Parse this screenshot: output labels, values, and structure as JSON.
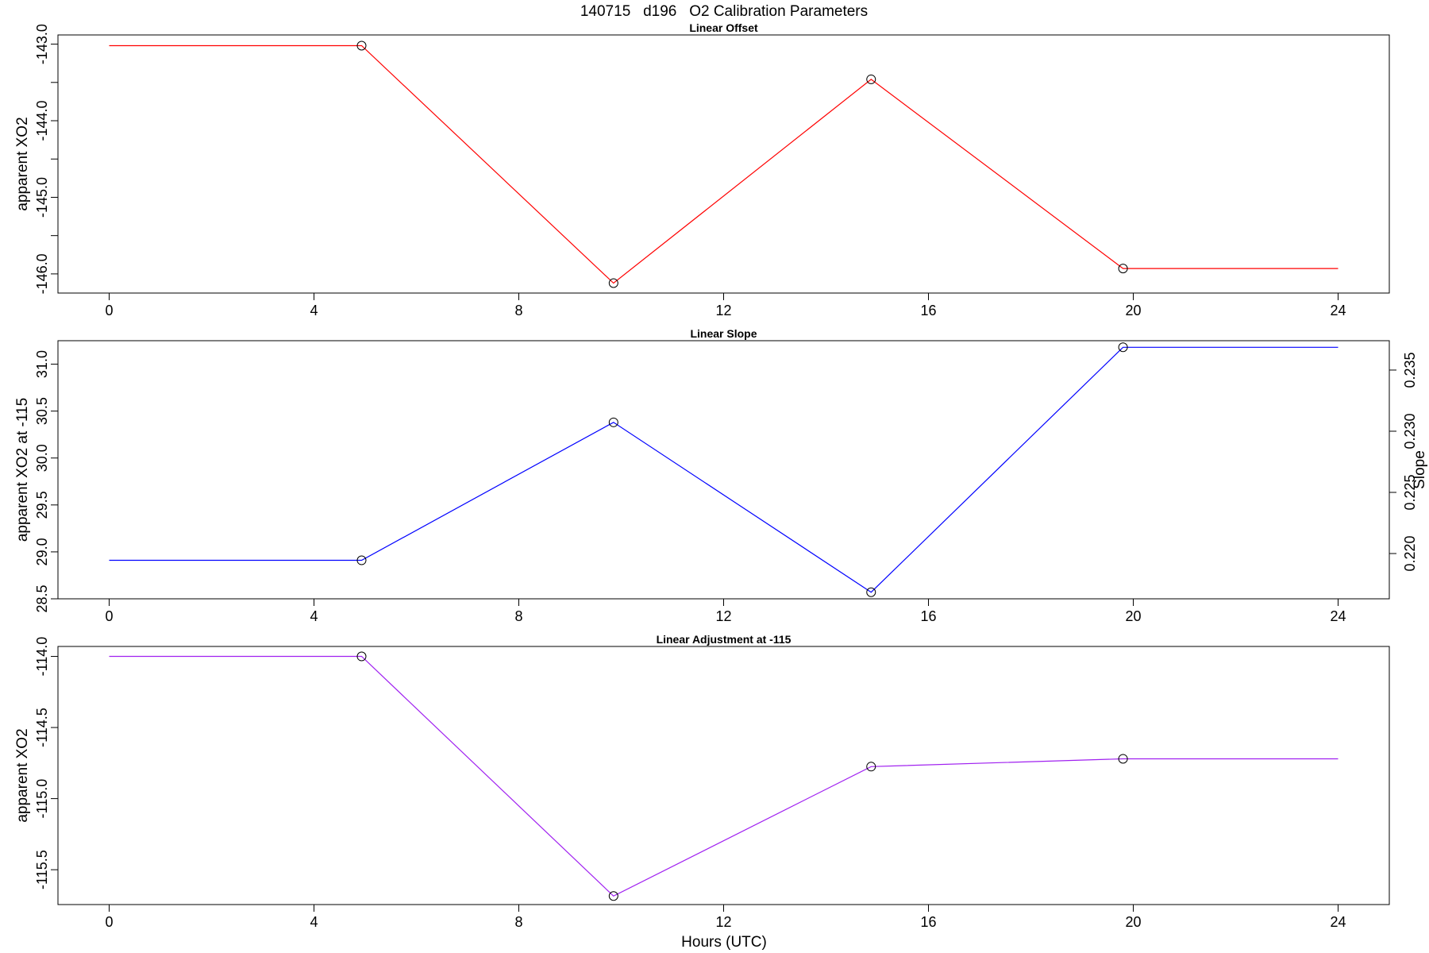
{
  "figure": {
    "title": "140715   d196   O2 Calibration Parameters",
    "xlabel": "Hours (UTC)"
  },
  "chart_data": [
    {
      "type": "line",
      "title": "Linear Offset",
      "xlabel": "",
      "ylabel": "apparent XO2",
      "xlim": [
        -1.0,
        25.0
      ],
      "ylim": [
        -146.25,
        -142.88
      ],
      "xticks": [
        0,
        4,
        8,
        12,
        16,
        20,
        24
      ],
      "yticks": [
        -146.0,
        -145.5,
        -145.0,
        -144.5,
        -144.0,
        -143.5,
        -143.0
      ],
      "ytick_labels": [
        "-146.0",
        "",
        "-145.0",
        "",
        "-144.0",
        "",
        "-143.0"
      ],
      "line_color": "#ff0000",
      "x": [
        0,
        4.93,
        9.85,
        14.88,
        19.8,
        24
      ],
      "y": [
        -143.02,
        -143.02,
        -146.12,
        -143.46,
        -145.93,
        -145.93
      ],
      "markers": [
        {
          "x": 4.93,
          "y": -143.02
        },
        {
          "x": 9.85,
          "y": -146.12
        },
        {
          "x": 14.88,
          "y": -143.46
        },
        {
          "x": 19.8,
          "y": -145.93
        }
      ]
    },
    {
      "type": "line",
      "title": "Linear Slope",
      "xlabel": "",
      "ylabel": "apparent XO2 at -115",
      "ylabel_right": "Slope",
      "xlim": [
        -1.0,
        25.0
      ],
      "ylim": [
        28.5,
        31.25
      ],
      "xticks": [
        0,
        4,
        8,
        12,
        16,
        20,
        24
      ],
      "yticks": [
        28.5,
        29.0,
        29.5,
        30.0,
        30.5,
        31.0
      ],
      "ytick_labels": [
        "28.5",
        "29.0",
        "29.5",
        "30.0",
        "30.5",
        "31.0"
      ],
      "right_ylim": [
        0.2163,
        0.2374
      ],
      "right_yticks": [
        0.22,
        0.225,
        0.23,
        0.235
      ],
      "right_ytick_labels": [
        "0.220",
        "0.225",
        "0.230",
        "0.235"
      ],
      "line_color": "#0000ff",
      "x": [
        0,
        4.93,
        9.85,
        14.88,
        19.8,
        24
      ],
      "y": [
        28.91,
        28.91,
        30.38,
        28.57,
        31.18,
        31.18
      ],
      "markers": [
        {
          "x": 4.93,
          "y": 28.91
        },
        {
          "x": 9.85,
          "y": 30.38
        },
        {
          "x": 14.88,
          "y": 28.57
        },
        {
          "x": 19.8,
          "y": 31.18
        }
      ]
    },
    {
      "type": "line",
      "title": "Linear Adjustment at -115",
      "xlabel": "Hours (UTC)",
      "ylabel": "apparent XO2",
      "xlim": [
        -1.0,
        25.0
      ],
      "ylim": [
        -115.745,
        -113.93
      ],
      "xticks": [
        0,
        4,
        8,
        12,
        16,
        20,
        24
      ],
      "yticks": [
        -115.5,
        -115.0,
        -114.5,
        -114.0
      ],
      "ytick_labels": [
        "-115.5",
        "-115.0",
        "-114.5",
        "-114.0"
      ],
      "line_color": "#a020f0",
      "x": [
        0,
        4.93,
        9.85,
        14.88,
        19.8,
        24
      ],
      "y": [
        -114.0,
        -114.0,
        -115.685,
        -114.775,
        -114.72,
        -114.72
      ],
      "markers": [
        {
          "x": 4.93,
          "y": -114.0
        },
        {
          "x": 9.85,
          "y": -115.685
        },
        {
          "x": 14.88,
          "y": -114.775
        },
        {
          "x": 19.8,
          "y": -114.72
        }
      ]
    }
  ]
}
